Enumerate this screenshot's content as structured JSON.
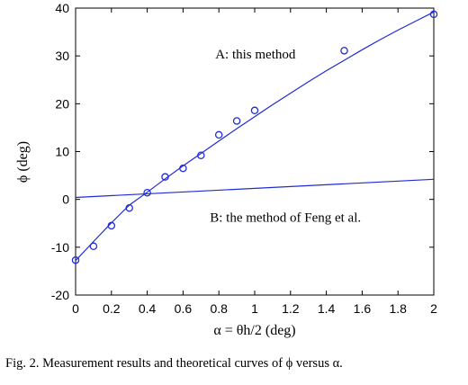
{
  "chart_data": {
    "type": "scatter",
    "xlabel": "α = θh/2 (deg)",
    "ylabel": "ϕ (deg)",
    "xlim": [
      0,
      2
    ],
    "ylim": [
      -20,
      40
    ],
    "xticks": [
      "0",
      "0.2",
      "0.4",
      "0.6",
      "0.8",
      "1",
      "1.2",
      "1.4",
      "1.6",
      "1.8",
      "2"
    ],
    "yticks": [
      "-20",
      "-10",
      "0",
      "10",
      "20",
      "30",
      "40"
    ],
    "grid": false,
    "series": [
      {
        "name": "A: this method",
        "kind": "line",
        "color": "#1f2bd6",
        "x": [
          0,
          0.1,
          0.2,
          0.3,
          0.4,
          0.5,
          0.6,
          0.7,
          0.8,
          0.9,
          1.0,
          1.1,
          1.2,
          1.3,
          1.4,
          1.5,
          1.6,
          1.7,
          1.8,
          1.9,
          2.0
        ],
        "y": [
          -12.8,
          -8.8,
          -4.9,
          -1.2,
          1.5,
          4.3,
          7.0,
          9.6,
          12.2,
          14.8,
          17.3,
          19.8,
          22.2,
          24.6,
          26.9,
          29.1,
          31.3,
          33.4,
          35.4,
          37.3,
          39.2
        ]
      },
      {
        "name": "B: the method of Feng et al.",
        "kind": "line",
        "color": "#1f2bd6",
        "x": [
          0,
          2
        ],
        "y": [
          0.4,
          4.2
        ]
      },
      {
        "name": "measurements",
        "kind": "markers",
        "color": "#1f2bd6",
        "x": [
          0,
          0.1,
          0.2,
          0.3,
          0.4,
          0.5,
          0.6,
          0.7,
          0.8,
          0.9,
          1.0,
          1.5,
          2.0
        ],
        "y": [
          -12.7,
          -9.8,
          -5.5,
          -1.8,
          1.4,
          4.7,
          6.5,
          9.2,
          13.5,
          16.4,
          18.6,
          31.1,
          38.7
        ]
      }
    ],
    "annotations": [
      {
        "text": "A: this method",
        "x": 0.78,
        "y": 29.5
      },
      {
        "text": "B: the method of Feng et al.",
        "x": 0.75,
        "y": -4.7
      }
    ]
  },
  "caption": "Fig.  2. Measurement results and theoretical curves of ϕ versus α."
}
